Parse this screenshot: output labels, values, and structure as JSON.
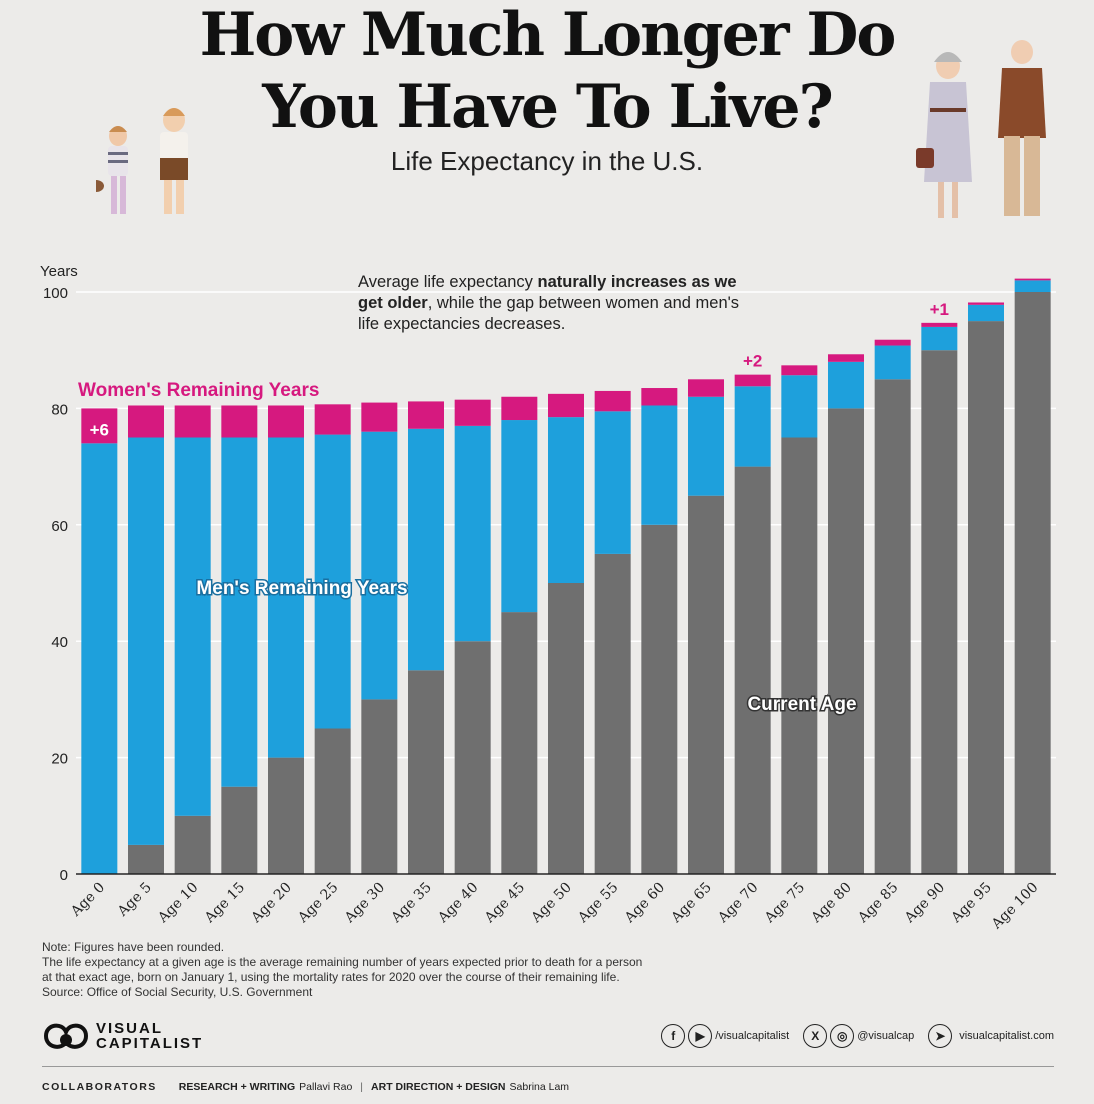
{
  "header": {
    "title_line1": "How Much Longer Do",
    "title_line2": "You Have To Live?",
    "subtitle": "Life Expectancy in the U.S."
  },
  "annotation": {
    "part1": "Average life expectancy ",
    "bold": "naturally increases as we get older",
    "part2": ", while the gap between women and men's life expectancies decreases."
  },
  "chart_data": {
    "type": "bar",
    "stacked": true,
    "ylabel": "Years",
    "ylim": [
      0,
      100
    ],
    "yticks": [
      0,
      20,
      40,
      60,
      80,
      100
    ],
    "categories": [
      "Age 0",
      "Age 5",
      "Age 10",
      "Age 15",
      "Age 20",
      "Age 25",
      "Age 30",
      "Age 35",
      "Age 40",
      "Age 45",
      "Age 50",
      "Age 55",
      "Age 60",
      "Age 65",
      "Age 70",
      "Age 75",
      "Age 80",
      "Age 85",
      "Age 90",
      "Age 95",
      "Age 100"
    ],
    "series": [
      {
        "name": "Current Age",
        "color": "#6f6f6f",
        "values": [
          0,
          5,
          10,
          15,
          20,
          25,
          30,
          35,
          40,
          45,
          50,
          55,
          60,
          65,
          70,
          75,
          80,
          85,
          90,
          95,
          100
        ]
      },
      {
        "name": "Men's Remaining Years",
        "color": "#1ea0dc",
        "values": [
          74,
          70,
          65,
          60,
          55,
          50.5,
          46,
          41.5,
          37,
          33,
          28.5,
          24.5,
          20.5,
          17,
          13.8,
          10.7,
          8,
          5.8,
          4,
          2.8,
          2
        ]
      },
      {
        "name": "Women's Remaining Years",
        "color": "#d6197f",
        "values": [
          6,
          5.5,
          5.5,
          5.5,
          5.5,
          5.2,
          5,
          4.7,
          4.5,
          4,
          4,
          3.5,
          3,
          3,
          2,
          1.7,
          1.3,
          1,
          0.7,
          0.4,
          0.3
        ]
      }
    ],
    "gap_labels": [
      {
        "category": "Age 0",
        "text": "+6",
        "position": "inside"
      },
      {
        "category": "Age 70",
        "text": "+2",
        "position": "above"
      },
      {
        "category": "Age 90",
        "text": "+1",
        "position": "above"
      }
    ],
    "series_labels": {
      "women": "Women's Remaining Years",
      "men": "Men's Remaining Years",
      "current": "Current Age"
    },
    "grid": true
  },
  "notes": {
    "line1": "Note: Figures have been rounded.",
    "line2": "The life expectancy at a given age is the average remaining number of years expected prior to death for a person",
    "line3": "at that exact age, born on January 1, using the mortality rates for 2020 over the course of their remaining life.",
    "line4": "Source: Office of Social Security, U.S. Government"
  },
  "brand": {
    "logo_line1": "VISUAL",
    "logo_line2": "CAPITALIST"
  },
  "social": {
    "handle1": "/visualcapitalist",
    "handle2": "@visualcap",
    "site": "visualcapitalist.com",
    "icon_facebook": "facebook-icon",
    "icon_youtube": "youtube-icon",
    "icon_x": "x-icon",
    "icon_instagram": "instagram-icon",
    "icon_cursor": "cursor-icon"
  },
  "credits": {
    "label": "COLLABORATORS",
    "research_role": "RESEARCH + WRITING",
    "research_name": "Pallavi Rao",
    "design_role": "ART DIRECTION + DESIGN",
    "design_name": "Sabrina Lam"
  }
}
